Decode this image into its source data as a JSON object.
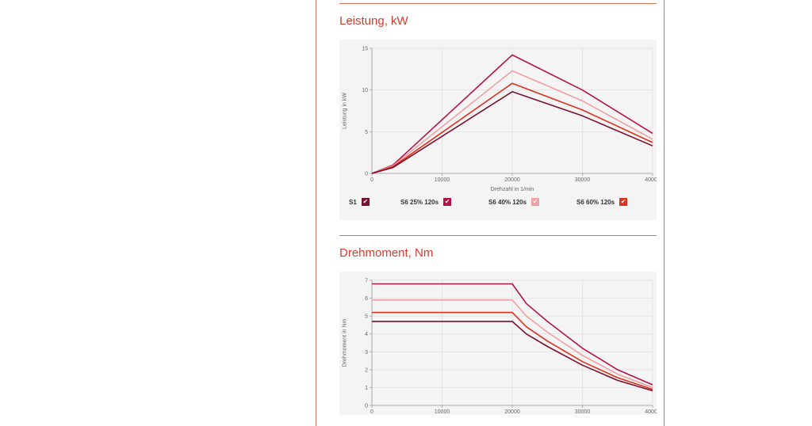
{
  "colors": {
    "accent": "#d63b2f",
    "S1": "#7a0f2e",
    "S6_25": "#b5124a",
    "S6_40": "#f0a0a0",
    "S6_60": "#e0301e"
  },
  "legend": [
    {
      "label": "S1",
      "color_key": "S1",
      "checked": true
    },
    {
      "label": "S6 25% 120s",
      "color_key": "S6_25",
      "checked": true
    },
    {
      "label": "S6 40% 120s",
      "color_key": "S6_40",
      "checked": true
    },
    {
      "label": "S6 60% 120s",
      "color_key": "S6_60",
      "checked": true
    }
  ],
  "checkbox_icon": "checkmark-icon",
  "chart_data": [
    {
      "type": "line",
      "title": "Leistung, kW",
      "xlabel": "Drehzahl in 1/min",
      "ylabel": "Leistung in kW",
      "xlim": [
        0,
        40000
      ],
      "ylim": [
        0,
        15
      ],
      "xticks": [
        0,
        10000,
        20000,
        30000,
        40000
      ],
      "yticks": [
        0,
        5,
        10,
        15
      ],
      "grid": true,
      "legend_position": "bottom",
      "series": [
        {
          "name": "S6 25% 120s",
          "color_key": "S6_25",
          "x": [
            0,
            3000,
            20000,
            30000,
            40000
          ],
          "y": [
            0,
            1.0,
            14.2,
            10.0,
            4.8
          ]
        },
        {
          "name": "S6 40% 120s",
          "color_key": "S6_40",
          "x": [
            0,
            3000,
            20000,
            30000,
            40000
          ],
          "y": [
            0,
            0.9,
            12.3,
            8.7,
            4.1
          ]
        },
        {
          "name": "S6 60% 120s",
          "color_key": "S6_60",
          "x": [
            0,
            3000,
            20000,
            30000,
            40000
          ],
          "y": [
            0,
            0.8,
            10.8,
            7.6,
            3.7
          ]
        },
        {
          "name": "S1",
          "color_key": "S1",
          "x": [
            0,
            3000,
            20000,
            30000,
            40000
          ],
          "y": [
            0,
            0.7,
            9.8,
            6.9,
            3.3
          ]
        }
      ]
    },
    {
      "type": "line",
      "title": "Drehmoment, Nm",
      "xlabel": "",
      "ylabel": "Drehmoment in Nm",
      "xlim": [
        0,
        40000
      ],
      "ylim": [
        0,
        7
      ],
      "xticks": [
        0,
        10000,
        20000,
        30000,
        40000
      ],
      "yticks": [
        0,
        1,
        2,
        3,
        4,
        5,
        6,
        7
      ],
      "grid": true,
      "series": [
        {
          "name": "S6 25% 120s",
          "color_key": "S6_25",
          "x": [
            0,
            20000,
            22000,
            25000,
            30000,
            35000,
            40000
          ],
          "y": [
            6.8,
            6.8,
            5.7,
            4.7,
            3.2,
            2.0,
            1.15
          ]
        },
        {
          "name": "S6 40% 120s",
          "color_key": "S6_40",
          "x": [
            0,
            20000,
            22000,
            25000,
            30000,
            35000,
            40000
          ],
          "y": [
            5.9,
            5.9,
            5.0,
            4.1,
            2.8,
            1.75,
            1.0
          ]
        },
        {
          "name": "S6 60% 120s",
          "color_key": "S6_60",
          "x": [
            0,
            20000,
            22000,
            25000,
            30000,
            35000,
            40000
          ],
          "y": [
            5.2,
            5.2,
            4.4,
            3.6,
            2.45,
            1.55,
            0.9
          ]
        },
        {
          "name": "S1",
          "color_key": "S1",
          "x": [
            0,
            20000,
            22000,
            25000,
            30000,
            35000,
            40000
          ],
          "y": [
            4.7,
            4.7,
            4.0,
            3.3,
            2.25,
            1.4,
            0.82
          ]
        }
      ]
    }
  ]
}
